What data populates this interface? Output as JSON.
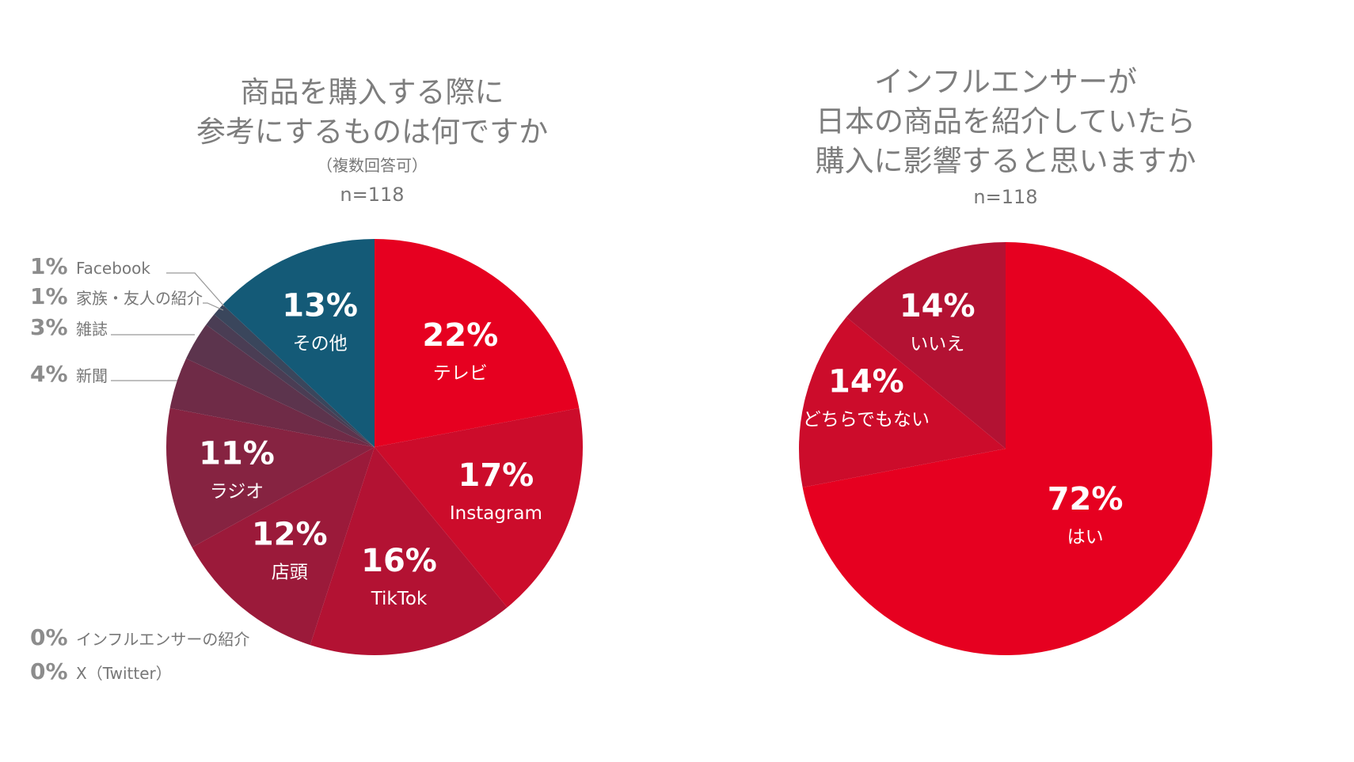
{
  "colors": {
    "title": "#7d7d7d",
    "callout_pct": "#8c8c8c",
    "callout_label": "#777777",
    "leader": "#999999"
  },
  "left_title": {
    "lines": [
      "商品を購入する際に",
      "参考にするものは何ですか"
    ],
    "note": "（複数回答可）",
    "n": "n=118"
  },
  "right_title": {
    "lines": [
      "インフルエンサーが",
      "日本の商品を紹介していたら",
      "購入に影響すると思いますか"
    ],
    "n": "n=118"
  },
  "chart_data": [
    {
      "type": "pie",
      "start_angle_deg": 0,
      "direction": "clockwise",
      "slices": [
        {
          "label": "テレビ",
          "percent": "22%",
          "value": 22,
          "color": "#e60020",
          "placement": "inside"
        },
        {
          "label": "Instagram",
          "percent": "17%",
          "value": 17,
          "color": "#cc0c2b",
          "placement": "inside"
        },
        {
          "label": "TikTok",
          "percent": "16%",
          "value": 16,
          "color": "#b31233",
          "placement": "inside"
        },
        {
          "label": "店頭",
          "percent": "12%",
          "value": 12,
          "color": "#9b1a3a",
          "placement": "inside"
        },
        {
          "label": "ラジオ",
          "percent": "11%",
          "value": 11,
          "color": "#862341",
          "placement": "inside"
        },
        {
          "label": "新聞",
          "percent": "4%",
          "value": 4,
          "color": "#6f2b47",
          "placement": "callout"
        },
        {
          "label": "雑誌",
          "percent": "3%",
          "value": 3,
          "color": "#5c344d",
          "placement": "callout"
        },
        {
          "label": "家族・友人の紹介",
          "percent": "1%",
          "value": 1,
          "color": "#4a3d54",
          "placement": "callout"
        },
        {
          "label": "Facebook",
          "percent": "1%",
          "value": 1,
          "color": "#3a465c",
          "placement": "callout"
        },
        {
          "label": "その他",
          "percent": "13%",
          "value": 13,
          "color": "#145a77",
          "placement": "inside"
        }
      ],
      "zero_items": [
        {
          "label": "インフルエンサーの紹介",
          "percent": "0%",
          "value": 0
        },
        {
          "label": "X（Twitter）",
          "percent": "0%",
          "value": 0
        }
      ]
    },
    {
      "type": "pie",
      "start_angle_deg": 0,
      "direction": "clockwise",
      "slices": [
        {
          "label": "はい",
          "percent": "72%",
          "value": 72,
          "color": "#e60020",
          "placement": "inside"
        },
        {
          "label": "どちらでもない",
          "percent": "14%",
          "value": 14,
          "color": "#cc0c2b",
          "placement": "inside"
        },
        {
          "label": "いいえ",
          "percent": "14%",
          "value": 14,
          "color": "#b31233",
          "placement": "inside"
        }
      ]
    }
  ]
}
